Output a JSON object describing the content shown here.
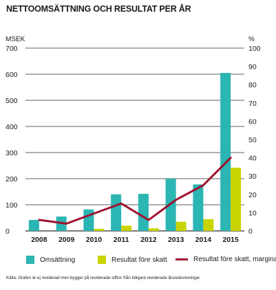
{
  "title": "NETTOOMSÄTTNING OCH RESULTAT PER ÅR",
  "source_note": "Källa: Grafen är ej reviderad men bygger på reviderade siffror från tidigare reviderade årsredovisningar.",
  "colors": {
    "revenue": "#2bb5b3",
    "profit": "#c9d400",
    "margin": "#a0102e",
    "grid": "#2a2a2a"
  },
  "chart_data": {
    "type": "bar",
    "categories": [
      "2008",
      "2009",
      "2010",
      "2011",
      "2012",
      "2013",
      "2014",
      "2015"
    ],
    "series": [
      {
        "name": "Omsättning",
        "type": "bar",
        "axis": "left",
        "values": [
          42,
          55,
          82,
          140,
          142,
          200,
          178,
          605
        ]
      },
      {
        "name": "Resultat före skatt",
        "type": "bar",
        "axis": "left",
        "values": [
          0,
          0,
          8,
          20,
          10,
          35,
          45,
          242
        ]
      },
      {
        "name": "Resultat före skatt, marginal",
        "type": "line",
        "axis": "right",
        "values": [
          6,
          4,
          9.5,
          15,
          6,
          17,
          25,
          40
        ]
      }
    ],
    "y_left": {
      "label": "MSEK",
      "min": 0,
      "max": 700,
      "ticks": [
        "0",
        "100",
        "200",
        "300",
        "400",
        "500",
        "600",
        "700"
      ]
    },
    "y_right": {
      "label": "%",
      "min": 0,
      "max": 100,
      "ticks": [
        "0",
        "10",
        "20",
        "30",
        "40",
        "50",
        "60",
        "70",
        "80",
        "90",
        "100"
      ]
    },
    "grid": true,
    "legend_position": "bottom"
  }
}
